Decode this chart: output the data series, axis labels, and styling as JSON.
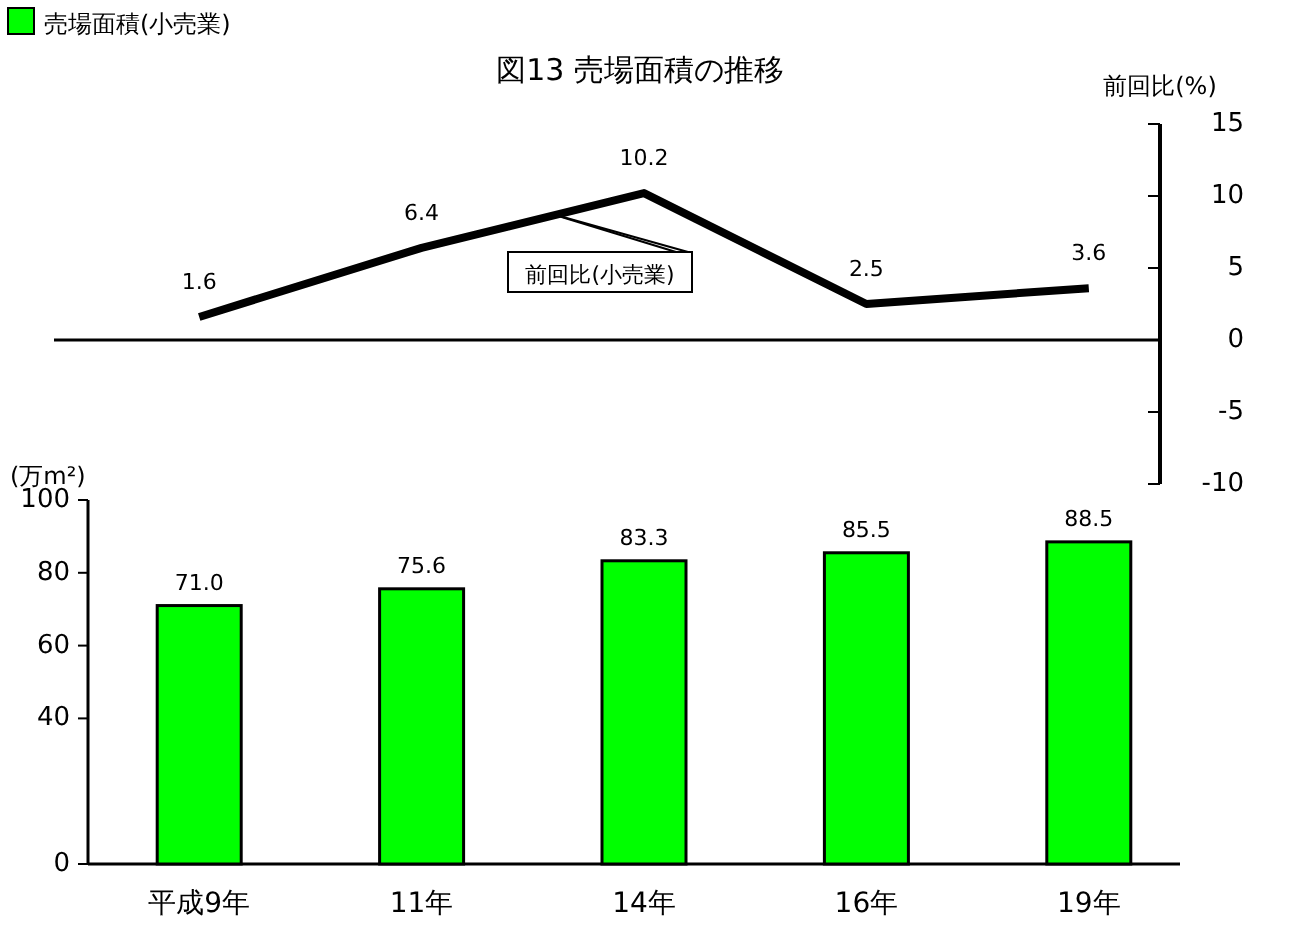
{
  "chart_data": [
    {
      "type": "line",
      "title": "図13  売場面積の推移",
      "categories": [
        null,
        null,
        null,
        null,
        null
      ],
      "ylabel": "前回比(%)",
      "ylim": [
        -10,
        15
      ],
      "yticks": [
        -10,
        -5,
        0,
        5,
        10,
        15
      ],
      "data_labels": true,
      "series": [
        {
          "name": "前回比(小売業)",
          "color": "#000000",
          "values": [
            1.6,
            6.4,
            10.2,
            2.5,
            3.6
          ]
        }
      ]
    },
    {
      "type": "bar",
      "categories": [
        "平成9年",
        "11年",
        "14年",
        "16年",
        "19年"
      ],
      "ylabel": "(万m²)",
      "ylim": [
        0,
        100
      ],
      "yticks": [
        0,
        40,
        60,
        80,
        100
      ],
      "legend": "top left",
      "series": [
        {
          "name": "売場面積(小売業)",
          "color": "#00ff00",
          "values": [
            71.0,
            75.6,
            83.3,
            85.5,
            88.5
          ],
          "value_labels": [
            "71.0",
            "75.6",
            "83.3",
            "85.5",
            "88.5"
          ]
        }
      ]
    }
  ]
}
